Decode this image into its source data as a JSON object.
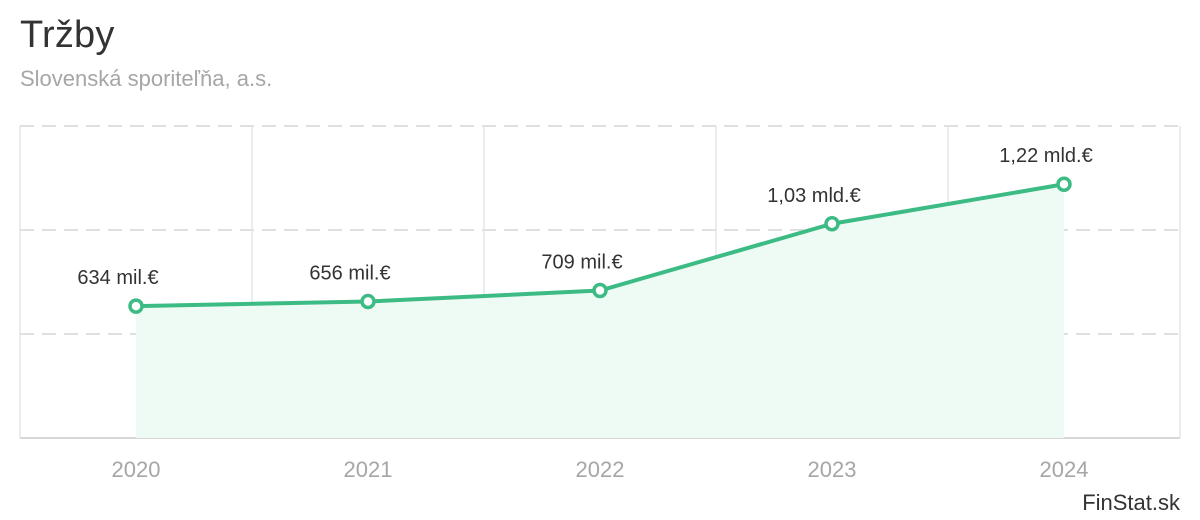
{
  "chart_data": {
    "type": "area",
    "title": "Tržby",
    "subtitle": "Slovenská sporiteľňa, a.s.",
    "categories": [
      "2020",
      "2021",
      "2022",
      "2023",
      "2024"
    ],
    "values": [
      634,
      656,
      709,
      1030,
      1220
    ],
    "data_labels": [
      "634 mil.€",
      "656 mil.€",
      "709 mil.€",
      "1,03 mld.€",
      "1,22 mld.€"
    ],
    "unit": "mil.€",
    "ylim": [
      0,
      1500
    ],
    "ygrid": [
      500,
      1000,
      1500
    ],
    "xlabel": "",
    "ylabel": "",
    "grid": true,
    "colors": {
      "line": "#3dbb85",
      "fill": "#eefaf4",
      "grid": "#e0e0e0",
      "axis_label": "#a6a6a6",
      "data_label": "#333333"
    }
  },
  "brand": "FinStat.sk"
}
